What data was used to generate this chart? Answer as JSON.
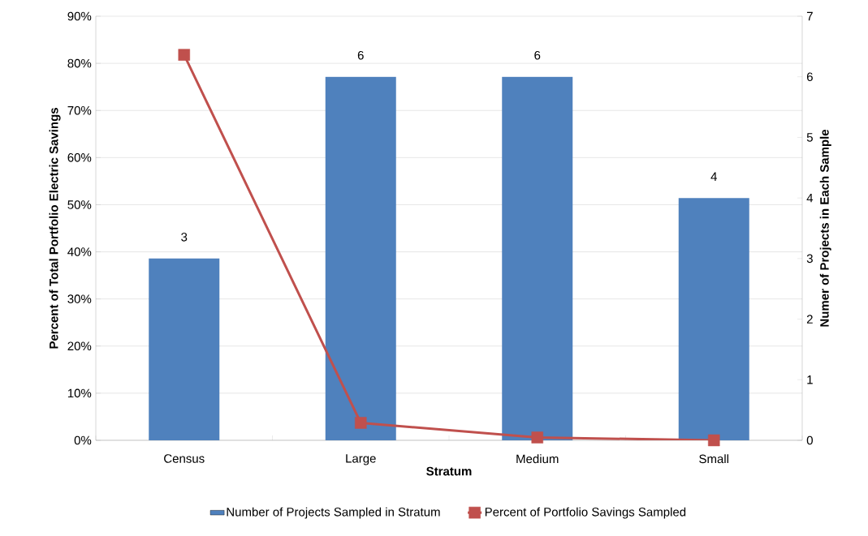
{
  "chart_data": {
    "type": "bar",
    "xlabel": "Stratum",
    "ylabel": "Percent of Total Portfolio Electric Savings",
    "y2label": "Numer of Projects in Each Sample",
    "categories": [
      "Census",
      "Large",
      "Medium",
      "Small"
    ],
    "series": [
      {
        "name": "Number of Projects Sampled in Stratum",
        "axis": "y2",
        "color": "#4f81bd",
        "values": [
          3,
          6,
          6,
          4
        ],
        "value_labels": [
          "3",
          "6",
          "6",
          "4"
        ]
      },
      {
        "name": "Percent of Portfolio Savings Sampled",
        "type": "line",
        "color": "#c0504d",
        "marker": "square",
        "values": [
          81.8,
          3.7,
          0.6,
          0
        ]
      }
    ],
    "ylim": [
      0,
      90
    ],
    "yticks": [
      {
        "value": 0,
        "label": "0%"
      },
      {
        "value": 10,
        "label": "10%"
      },
      {
        "value": 20,
        "label": "20%"
      },
      {
        "value": 30,
        "label": "30%"
      },
      {
        "value": 40,
        "label": "40%"
      },
      {
        "value": 50,
        "label": "50%"
      },
      {
        "value": 60,
        "label": "60%"
      },
      {
        "value": 70,
        "label": "70%"
      },
      {
        "value": 80,
        "label": "80%"
      },
      {
        "value": 90,
        "label": "90%"
      }
    ],
    "y2lim": [
      0,
      7
    ],
    "y2ticks": [
      0,
      1,
      2,
      3,
      4,
      5,
      6,
      7
    ],
    "grid": "y",
    "legend": "bottom"
  }
}
